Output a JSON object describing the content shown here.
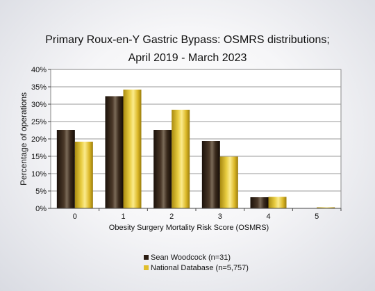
{
  "chart_data": {
    "type": "bar",
    "title_line1": "Primary Roux-en-Y Gastric Bypass: OSMRS distributions;",
    "title_line2": "April 2019 - March 2023",
    "xlabel": "Obesity Surgery Mortality Risk Score (OSMRS)",
    "ylabel": "Percentage of operations",
    "categories": [
      "0",
      "1",
      "2",
      "3",
      "4",
      "5"
    ],
    "y_ticks": [
      "0%",
      "5%",
      "10%",
      "15%",
      "20%",
      "25%",
      "30%",
      "35%",
      "40%"
    ],
    "ylim": [
      0,
      40
    ],
    "grid": true,
    "legend_position": "bottom",
    "series": [
      {
        "name": "Sean Woodcock (n=31)",
        "values": [
          22.6,
          32.3,
          22.6,
          19.4,
          3.2,
          0.0
        ],
        "color": "#2a1c12"
      },
      {
        "name": "National Database (n=5,757)",
        "values": [
          19.2,
          34.2,
          28.4,
          14.9,
          3.3,
          0.3
        ],
        "color": "#e0be2c"
      }
    ]
  }
}
